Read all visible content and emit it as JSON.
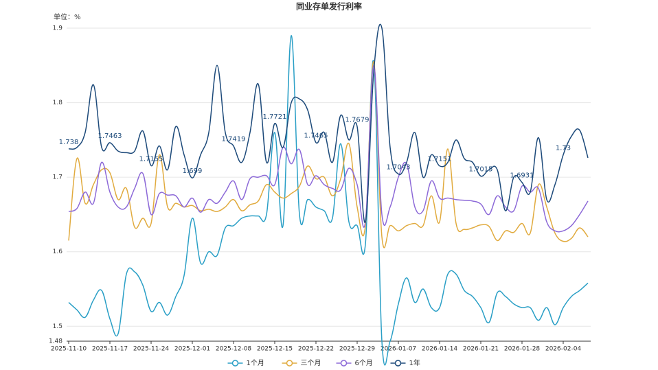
{
  "chart_data": {
    "type": "line",
    "title": "同业存单发行利率",
    "y_label": "单位：%",
    "categories": [
      "2025-11-10",
      null,
      null,
      null,
      null,
      "2025-11-17",
      null,
      null,
      null,
      null,
      "2025-11-24",
      null,
      null,
      null,
      null,
      "2025-12-01",
      null,
      null,
      null,
      null,
      "2025-12-08",
      null,
      null,
      null,
      null,
      "2025-12-15",
      null,
      null,
      null,
      null,
      "2025-12-22",
      null,
      null,
      null,
      null,
      "2025-12-29",
      null,
      null,
      null,
      null,
      "2026-01-07",
      null,
      null,
      null,
      null,
      "2026-01-14",
      null,
      null,
      null,
      null,
      "2026-01-21",
      null,
      null,
      null,
      null,
      "2026-01-28",
      null,
      null,
      null,
      null,
      "2026-02-04",
      null,
      null,
      null
    ],
    "ylim": [
      1.48,
      1.9
    ],
    "yticks": [
      1.48,
      1.5,
      1.6,
      1.7,
      1.8,
      1.9
    ],
    "grid": true,
    "legend": "bottom",
    "series": [
      {
        "name": "1个月",
        "color": "#2a9fc6",
        "values": [
          1.532,
          1.522,
          1.512,
          1.535,
          1.548,
          1.51,
          1.49,
          1.57,
          1.573,
          1.555,
          1.52,
          1.532,
          1.515,
          1.54,
          1.568,
          1.645,
          1.585,
          1.6,
          1.595,
          1.632,
          1.635,
          1.645,
          1.648,
          1.648,
          1.65,
          1.76,
          1.635,
          1.89,
          1.65,
          1.67,
          1.66,
          1.655,
          1.645,
          1.745,
          1.64,
          1.635,
          1.61,
          1.855,
          1.48,
          1.48,
          1.53,
          1.565,
          1.532,
          1.55,
          1.525,
          1.525,
          1.57,
          1.57,
          1.548,
          1.54,
          1.525,
          1.505,
          1.545,
          1.54,
          1.53,
          1.525,
          1.525,
          1.508,
          1.525,
          1.502,
          1.525,
          1.54,
          1.548,
          1.558
        ]
      },
      {
        "name": "三个月",
        "color": "#e1ab3f",
        "values": [
          1.615,
          1.725,
          1.665,
          1.69,
          1.71,
          1.706,
          1.67,
          1.685,
          1.633,
          1.645,
          1.638,
          1.73,
          1.66,
          1.665,
          1.66,
          1.662,
          1.655,
          1.657,
          1.654,
          1.66,
          1.67,
          1.655,
          1.663,
          1.668,
          1.69,
          1.68,
          1.672,
          1.678,
          1.688,
          1.715,
          1.698,
          1.7,
          1.675,
          1.698,
          1.745,
          1.66,
          1.635,
          1.855,
          1.62,
          1.635,
          1.628,
          1.635,
          1.638,
          1.635,
          1.675,
          1.64,
          1.738,
          1.638,
          1.63,
          1.632,
          1.636,
          1.634,
          1.615,
          1.628,
          1.626,
          1.638,
          1.625,
          1.69,
          1.66,
          1.625,
          1.614,
          1.618,
          1.632,
          1.62
        ]
      },
      {
        "name": "6个月",
        "color": "#8d6ad8",
        "values": [
          1.654,
          1.658,
          1.68,
          1.665,
          1.72,
          1.68,
          1.66,
          1.66,
          1.685,
          1.705,
          1.65,
          1.678,
          1.676,
          1.675,
          1.66,
          1.672,
          1.653,
          1.67,
          1.665,
          1.68,
          1.695,
          1.67,
          1.698,
          1.7,
          1.702,
          1.69,
          1.74,
          1.718,
          1.737,
          1.69,
          1.702,
          1.69,
          1.685,
          1.683,
          1.712,
          1.69,
          1.64,
          1.85,
          1.65,
          1.66,
          1.7,
          1.718,
          1.66,
          1.655,
          1.695,
          1.672,
          1.672,
          1.67,
          1.669,
          1.668,
          1.664,
          1.65,
          1.675,
          1.66,
          1.655,
          1.688,
          1.68,
          1.685,
          1.64,
          1.628,
          1.628,
          1.635,
          1.65,
          1.668
        ]
      },
      {
        "name": "1年",
        "color": "#1d4a7a",
        "values": [
          1.738,
          1.74,
          1.76,
          1.824,
          1.74,
          1.7463,
          1.735,
          1.733,
          1.735,
          1.762,
          1.7155,
          1.742,
          1.71,
          1.768,
          1.73,
          1.699,
          1.73,
          1.76,
          1.85,
          1.76,
          1.7419,
          1.72,
          1.76,
          1.825,
          1.72,
          1.7721,
          1.74,
          1.8,
          1.805,
          1.79,
          1.7465,
          1.76,
          1.72,
          1.783,
          1.75,
          1.7679,
          1.64,
          1.84,
          1.9,
          1.74,
          1.7043,
          1.72,
          1.76,
          1.7,
          1.73,
          1.7151,
          1.72,
          1.75,
          1.725,
          1.72,
          1.7015,
          1.71,
          1.71,
          1.655,
          1.7,
          1.6931,
          1.68,
          1.753,
          1.67,
          1.69,
          1.73,
          1.755,
          1.763,
          1.726
        ],
        "value_labels": [
          "1.738",
          null,
          null,
          null,
          null,
          "1.7463",
          null,
          null,
          null,
          null,
          "1.7155",
          null,
          null,
          null,
          null,
          "1.699",
          null,
          null,
          null,
          null,
          "1.7419",
          null,
          null,
          null,
          null,
          "1.7721",
          null,
          null,
          null,
          null,
          "1.7465",
          null,
          null,
          null,
          null,
          "1.7679",
          null,
          null,
          null,
          null,
          "1.7043",
          null,
          null,
          null,
          null,
          "1.7151",
          null,
          null,
          null,
          null,
          "1.7015",
          null,
          null,
          null,
          null,
          "1.6931",
          null,
          null,
          null,
          null,
          "1.73",
          null,
          null,
          null
        ]
      }
    ]
  }
}
